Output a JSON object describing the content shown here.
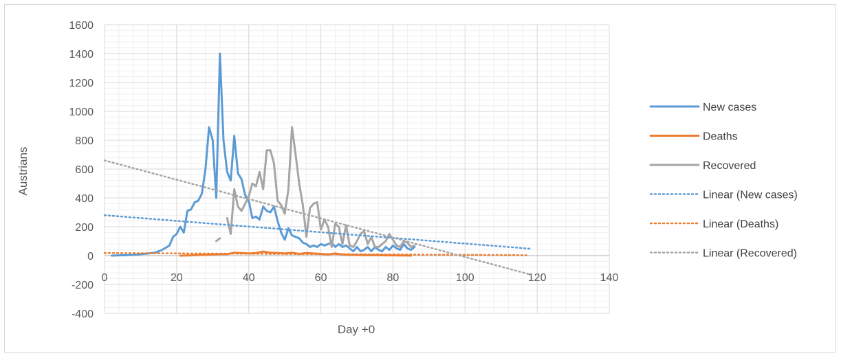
{
  "chart_data": {
    "type": "line",
    "xlabel": "Day +0",
    "ylabel": "Austrians",
    "xlim": [
      0,
      140
    ],
    "ylim": [
      -400,
      1600
    ],
    "x_ticks": [
      0,
      20,
      40,
      60,
      80,
      100,
      120,
      140
    ],
    "y_ticks": [
      -400,
      -200,
      0,
      200,
      400,
      600,
      800,
      1000,
      1200,
      1400,
      1600
    ],
    "grid": {
      "major": true,
      "minor": true
    },
    "legend_position": "right",
    "series": [
      {
        "name": "New cases",
        "color": "#5b9bd5",
        "style": "solid",
        "x": [
          2,
          4,
          6,
          8,
          10,
          12,
          14,
          16,
          18,
          19,
          20,
          21,
          22,
          23,
          24,
          25,
          26,
          27,
          28,
          29,
          30,
          31,
          32,
          33,
          34,
          35,
          36,
          37,
          38,
          39,
          40,
          41,
          42,
          43,
          44,
          45,
          46,
          47,
          48,
          49,
          50,
          51,
          52,
          53,
          54,
          55,
          56,
          57,
          58,
          59,
          60,
          61,
          62,
          63,
          64,
          65,
          66,
          67,
          68,
          69,
          70,
          71,
          72,
          73,
          74,
          75,
          76,
          77,
          78,
          79,
          80,
          81,
          82,
          83,
          84,
          85,
          86
        ],
        "y": [
          0,
          2,
          3,
          5,
          10,
          15,
          20,
          40,
          70,
          130,
          150,
          200,
          160,
          310,
          320,
          370,
          380,
          430,
          600,
          890,
          800,
          400,
          1400,
          800,
          580,
          520,
          830,
          570,
          530,
          420,
          380,
          260,
          270,
          250,
          340,
          310,
          300,
          340,
          240,
          160,
          110,
          190,
          140,
          130,
          120,
          90,
          80,
          60,
          70,
          60,
          80,
          70,
          80,
          90,
          60,
          80,
          60,
          70,
          50,
          30,
          60,
          30,
          40,
          60,
          30,
          60,
          40,
          30,
          60,
          40,
          70,
          50,
          40,
          80,
          50,
          40,
          60
        ]
      },
      {
        "name": "Deaths",
        "color": "#ed7d31",
        "style": "solid",
        "x": [
          21,
          24,
          27,
          30,
          32,
          34,
          36,
          38,
          40,
          42,
          44,
          46,
          48,
          50,
          52,
          54,
          56,
          58,
          60,
          62,
          64,
          66,
          68,
          70,
          72,
          74,
          76,
          78,
          80,
          82,
          84,
          85
        ],
        "y": [
          0,
          2,
          5,
          8,
          10,
          10,
          20,
          18,
          15,
          18,
          28,
          20,
          18,
          15,
          20,
          12,
          18,
          15,
          12,
          8,
          15,
          8,
          5,
          5,
          3,
          3,
          3,
          2,
          2,
          1,
          1,
          0
        ]
      },
      {
        "name": "Recovered",
        "color": "#a5a5a5",
        "style": "solid",
        "x": [
          31,
          32,
          null,
          34,
          35,
          36,
          37,
          38,
          39,
          40,
          41,
          42,
          43,
          44,
          45,
          46,
          47,
          48,
          49,
          50,
          51,
          52,
          53,
          54,
          55,
          56,
          57,
          58,
          59,
          60,
          61,
          62,
          63,
          64,
          65,
          66,
          67,
          68,
          69,
          70,
          71,
          72,
          73,
          74,
          75,
          76,
          77,
          78,
          79,
          80,
          81,
          82,
          83,
          84,
          85,
          86
        ],
        "y": [
          100,
          120,
          null,
          260,
          150,
          460,
          340,
          310,
          360,
          410,
          500,
          480,
          580,
          460,
          730,
          730,
          640,
          380,
          350,
          290,
          460,
          890,
          700,
          500,
          350,
          130,
          330,
          360,
          370,
          180,
          250,
          200,
          60,
          220,
          200,
          80,
          210,
          70,
          60,
          100,
          150,
          170,
          80,
          130,
          60,
          60,
          80,
          100,
          150,
          110,
          70,
          60,
          100,
          90,
          60,
          70
        ]
      },
      {
        "name": "Linear (New cases)",
        "color": "#5b9bd5",
        "style": "dotted",
        "x": [
          0,
          118
        ],
        "y": [
          280,
          48
        ]
      },
      {
        "name": "Linear (Deaths)",
        "color": "#ed7d31",
        "style": "dotted",
        "x": [
          0,
          117
        ],
        "y": [
          18,
          3
        ]
      },
      {
        "name": "Linear (Recovered)",
        "color": "#a5a5a5",
        "style": "dotted",
        "x": [
          0,
          118
        ],
        "y": [
          660,
          -130
        ]
      }
    ]
  }
}
